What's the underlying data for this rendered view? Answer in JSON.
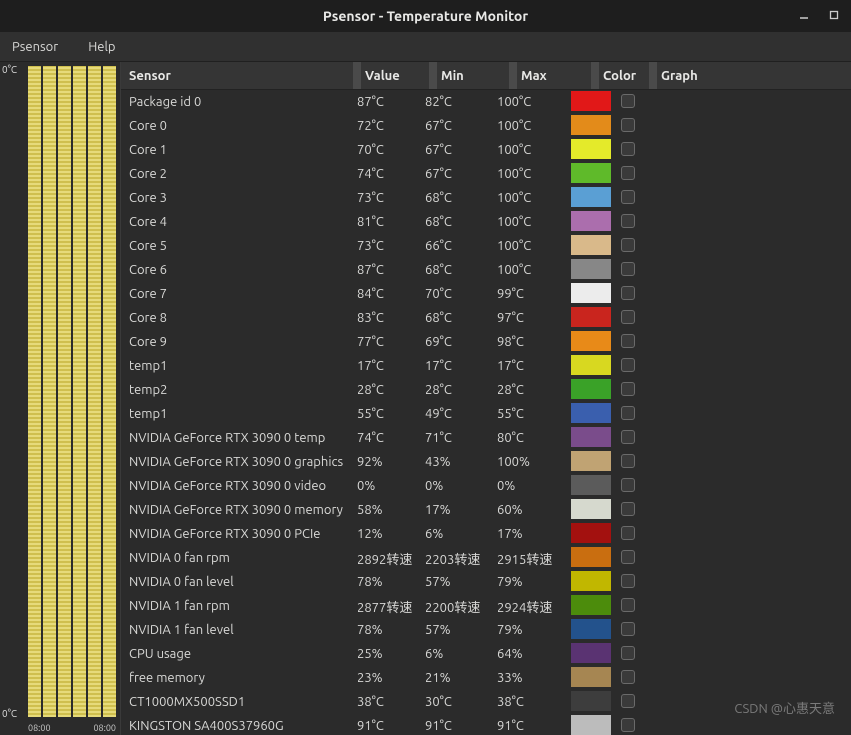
{
  "window": {
    "title": "Psensor - Temperature Monitor"
  },
  "menu": {
    "app": "Psensor",
    "help": "Help"
  },
  "graph": {
    "ylab": "0°C",
    "xlabs": [
      "08:00",
      "08:00"
    ]
  },
  "columns": {
    "sensor": "Sensor",
    "value": "Value",
    "min": "Min",
    "max": "Max",
    "color": "Color",
    "graph": "Graph"
  },
  "rows": [
    {
      "sensor": "Package id 0",
      "value": "87°C",
      "min": "82°C",
      "max": "100°C",
      "color": "#e11818"
    },
    {
      "sensor": "Core 0",
      "value": "72°C",
      "min": "67°C",
      "max": "100°C",
      "color": "#e38b1a"
    },
    {
      "sensor": "Core 1",
      "value": "70°C",
      "min": "67°C",
      "max": "100°C",
      "color": "#e4ea2a"
    },
    {
      "sensor": "Core 2",
      "value": "74°C",
      "min": "67°C",
      "max": "100°C",
      "color": "#5fba2a"
    },
    {
      "sensor": "Core 3",
      "value": "73°C",
      "min": "68°C",
      "max": "100°C",
      "color": "#5a9fd4"
    },
    {
      "sensor": "Core 4",
      "value": "81°C",
      "min": "68°C",
      "max": "100°C",
      "color": "#ab6ead"
    },
    {
      "sensor": "Core 5",
      "value": "73°C",
      "min": "66°C",
      "max": "100°C",
      "color": "#d9b98a"
    },
    {
      "sensor": "Core 6",
      "value": "87°C",
      "min": "68°C",
      "max": "100°C",
      "color": "#878787"
    },
    {
      "sensor": "Core 7",
      "value": "84°C",
      "min": "70°C",
      "max": "99°C",
      "color": "#ececec"
    },
    {
      "sensor": "Core 8",
      "value": "83°C",
      "min": "68°C",
      "max": "97°C",
      "color": "#c9251e"
    },
    {
      "sensor": "Core 9",
      "value": "77°C",
      "min": "69°C",
      "max": "98°C",
      "color": "#e88a18"
    },
    {
      "sensor": "temp1",
      "value": "17°C",
      "min": "17°C",
      "max": "17°C",
      "color": "#d8d820"
    },
    {
      "sensor": "temp2",
      "value": "28°C",
      "min": "28°C",
      "max": "28°C",
      "color": "#3aa228"
    },
    {
      "sensor": "temp1",
      "value": "55°C",
      "min": "49°C",
      "max": "55°C",
      "color": "#3a5fae"
    },
    {
      "sensor": "NVIDIA GeForce RTX 3090 0 temp",
      "value": "74°C",
      "min": "71°C",
      "max": "80°C",
      "color": "#7a4c8b"
    },
    {
      "sensor": "NVIDIA GeForce RTX 3090 0 graphics",
      "value": "92%",
      "min": "43%",
      "max": "100%",
      "color": "#c0a373"
    },
    {
      "sensor": "NVIDIA GeForce RTX 3090 0 video",
      "value": "0%",
      "min": "0%",
      "max": "0%",
      "color": "#5b5b5b"
    },
    {
      "sensor": "NVIDIA GeForce RTX 3090 0 memory",
      "value": "58%",
      "min": "17%",
      "max": "60%",
      "color": "#d6d9ce"
    },
    {
      "sensor": "NVIDIA GeForce RTX 3090 0 PCIe",
      "value": "12%",
      "min": "6%",
      "max": "17%",
      "color": "#a3110f"
    },
    {
      "sensor": "NVIDIA 0 fan rpm",
      "value": "2892转速",
      "min": "2203转速",
      "max": "2915转速",
      "color": "#c96e10"
    },
    {
      "sensor": "NVIDIA 0 fan level",
      "value": "78%",
      "min": "57%",
      "max": "79%",
      "color": "#c1b700"
    },
    {
      "sensor": "NVIDIA 1 fan rpm",
      "value": "2877转速",
      "min": "2200转速",
      "max": "2924转速",
      "color": "#4c8c0c"
    },
    {
      "sensor": "NVIDIA 1 fan level",
      "value": "78%",
      "min": "57%",
      "max": "79%",
      "color": "#23528c"
    },
    {
      "sensor": "CPU usage",
      "value": "25%",
      "min": "6%",
      "max": "64%",
      "color": "#5a3372"
    },
    {
      "sensor": "free memory",
      "value": "23%",
      "min": "21%",
      "max": "33%",
      "color": "#a68652"
    },
    {
      "sensor": "CT1000MX500SSD1",
      "value": "38°C",
      "min": "30°C",
      "max": "38°C",
      "color": "#3d3d3d"
    },
    {
      "sensor": "KINGSTON SA400S37960G",
      "value": "91°C",
      "min": "91°C",
      "max": "91°C",
      "color": "#bcbcbc"
    }
  ],
  "watermark": "CSDN @心惠天意"
}
